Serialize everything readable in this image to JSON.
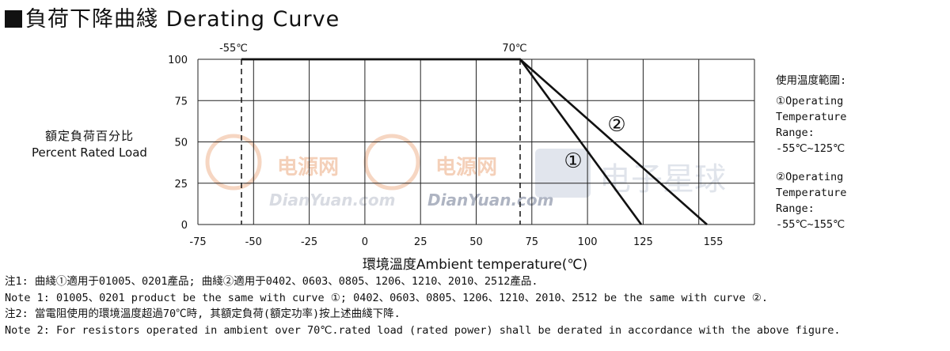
{
  "title": "負荷下降曲綫  Derating Curve",
  "ylabel_cn": "額定負荷百分比",
  "ylabel_en": "Percent Rated Load",
  "xlabel": "環境溫度Ambient temperature(℃)",
  "right_info": {
    "heading": "使用温度範圍:",
    "op1": [
      "①Operating",
      "Temperature",
      "Range:",
      "-55℃~125℃"
    ],
    "op2": [
      "②Operating",
      "Temperature",
      "Range:",
      "-55℃~155℃"
    ]
  },
  "notes": [
    "注1: 曲綫①適用于01005、0201產品; 曲綫②適用于0402、0603、0805、1206、1210、2010、2512產品.",
    "Note 1: 01005、0201 product be the same with curve ①; 0402、0603、0805、1206、1210、2010、2512 be the same with curve ②.",
    "注2: 當電阻使用的環境溫度超過70℃時, 其額定負荷(額定功率)按上述曲綫下降.",
    "Note 2: For resistors operated in ambient over 70℃.rated load (rated power) shall be derated in accordance with the above figure."
  ],
  "watermark": {
    "brand_cn": "电源网",
    "brand_en": "DianYuan.com",
    "brand2_cn": "电子星球"
  },
  "chart_data": {
    "type": "line",
    "title": "Derating Curve",
    "xlabel": "環境溫度Ambient temperature(℃)",
    "ylabel": "額定負荷百分比 Percent Rated Load",
    "xlim": [
      -75,
      160
    ],
    "ylim": [
      0,
      100
    ],
    "x_ticks": [
      -75,
      -50,
      -25,
      0,
      25,
      50,
      75,
      100,
      125,
      155
    ],
    "x_tick_labels": [
      "-75",
      "-50",
      "-25",
      "0",
      "25",
      "50",
      "75",
      "100",
      "125",
      "155"
    ],
    "y_ticks": [
      0,
      25,
      50,
      75,
      100
    ],
    "y_tick_labels": [
      "0",
      "25",
      "50",
      "75",
      "100"
    ],
    "grid": true,
    "annotations": [
      {
        "text": "-55℃",
        "x": -55,
        "y": 100
      },
      {
        "text": "70℃",
        "x": 70,
        "y": 100
      }
    ],
    "vertical_dashed_lines": [
      -55,
      70
    ],
    "series": [
      {
        "label": "①",
        "x": [
          -55,
          70,
          125
        ],
        "y": [
          100,
          100,
          0
        ]
      },
      {
        "label": "②",
        "x": [
          -55,
          70,
          155
        ],
        "y": [
          100,
          100,
          0
        ]
      }
    ]
  }
}
